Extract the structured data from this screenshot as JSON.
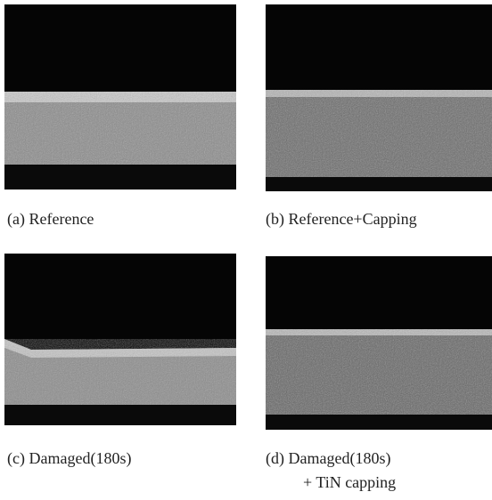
{
  "panels": [
    {
      "caption": "(a) Reference"
    },
    {
      "caption": "(b) Reference+Capping"
    },
    {
      "caption": "(c) Damaged(180s)"
    },
    {
      "caption": "(d) Damaged(180s)",
      "caption_line2": "+ TiN capping"
    }
  ]
}
